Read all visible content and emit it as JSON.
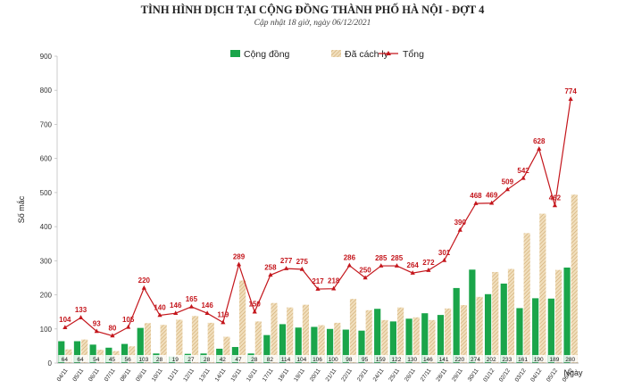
{
  "chart_data": {
    "type": "bar",
    "title": "TÌNH HÌNH DỊCH TẠI CỘNG ĐỒNG THÀNH PHỐ HÀ NỘI - ĐỢT 4",
    "subtitle": "Cập nhật 18 giờ, ngày 06/12/2021",
    "ylabel": "Số mắc",
    "xlabel": "Ngày",
    "ylim": [
      0,
      900
    ],
    "yticks": [
      0,
      100,
      200,
      300,
      400,
      500,
      600,
      700,
      800,
      900
    ],
    "legend": {
      "position": "top",
      "items": [
        "Cộng đồng",
        "Đã cách ly",
        "Tổng"
      ]
    },
    "colors": {
      "community": "#1aa54a",
      "isolated": "#e8cda0",
      "isolated_stripe": "#c9a46a",
      "total": "#c4161c"
    },
    "categories": [
      "04/11",
      "05/11",
      "06/11",
      "07/11",
      "08/11",
      "09/11",
      "10/11",
      "11/11",
      "12/11",
      "13/11",
      "14/11",
      "15/11",
      "16/11",
      "17/11",
      "18/11",
      "19/11",
      "20/11",
      "21/11",
      "22/11",
      "23/11",
      "24/11",
      "25/11",
      "26/11",
      "27/11",
      "28/11",
      "29/11",
      "30/11",
      "01/12",
      "02/12",
      "03/12",
      "04/12",
      "05/12",
      "06/12"
    ],
    "series": [
      {
        "name": "Cộng đồng",
        "type": "bar",
        "values": [
          64,
          64,
          54,
          45,
          56,
          103,
          28,
          19,
          27,
          28,
          42,
          47,
          28,
          82,
          114,
          104,
          106,
          100,
          98,
          95,
          159,
          122,
          130,
          146,
          141,
          220,
          274,
          202,
          233,
          161,
          190,
          189,
          280
        ]
      },
      {
        "name": "Đã cách ly",
        "type": "bar",
        "values": [
          40,
          69,
          39,
          35,
          49,
          117,
          112,
          127,
          138,
          118,
          77,
          242,
          122,
          176,
          163,
          171,
          111,
          118,
          188,
          155,
          126,
          163,
          134,
          126,
          160,
          170,
          194,
          267,
          276,
          381,
          438,
          273,
          494
        ]
      },
      {
        "name": "Tổng",
        "type": "line",
        "values": [
          104,
          133,
          93,
          80,
          105,
          220,
          140,
          146,
          165,
          146,
          119,
          289,
          150,
          258,
          277,
          275,
          217,
          218,
          286,
          250,
          285,
          285,
          264,
          272,
          301,
          390,
          468,
          469,
          509,
          542,
          628,
          462,
          774
        ]
      }
    ]
  }
}
